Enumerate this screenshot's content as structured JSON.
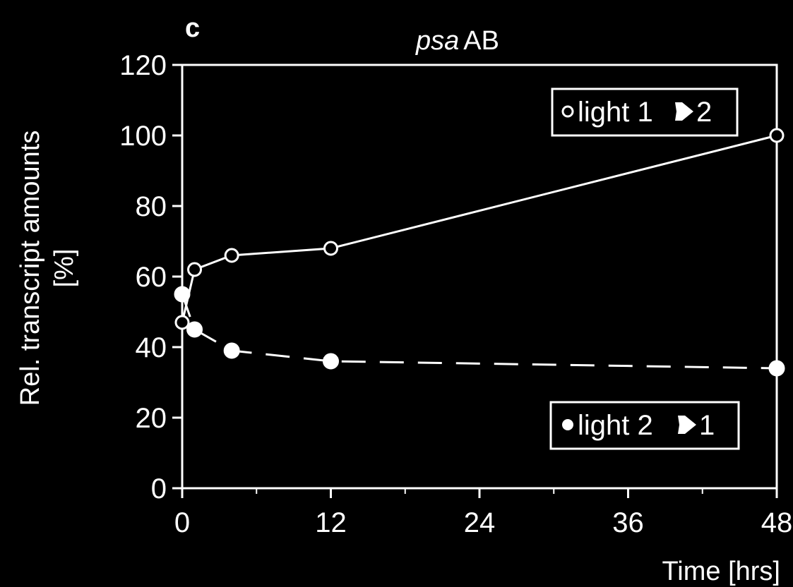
{
  "panel_letter": "c",
  "chart_data": {
    "type": "line",
    "title_italic": "psa",
    "title_rest": "AB",
    "xlabel": "Time [hrs]",
    "ylabel_line1": "Rel. transcript amounts",
    "ylabel_line2": "[%]",
    "xlim": [
      0,
      48
    ],
    "ylim": [
      0,
      120
    ],
    "xticks": [
      0,
      12,
      24,
      36,
      48
    ],
    "yticks": [
      0,
      20,
      40,
      60,
      80,
      100,
      120
    ],
    "grid": false,
    "series": [
      {
        "name": "light 1 ➧ 2",
        "legend_prefix": "light 1",
        "legend_suffix": "2",
        "marker": "open-circle",
        "line": "solid",
        "x": [
          0,
          1,
          4,
          12,
          48
        ],
        "y": [
          47,
          62,
          66,
          68,
          100
        ]
      },
      {
        "name": "light 2 ➧ 1",
        "legend_prefix": "light 2",
        "legend_suffix": "1",
        "marker": "filled-circle",
        "line": "dashed",
        "x": [
          0,
          1,
          4,
          12,
          48
        ],
        "y": [
          55,
          45,
          39,
          36,
          34
        ]
      }
    ],
    "legend_positions": [
      "top-right",
      "bottom-right"
    ]
  }
}
